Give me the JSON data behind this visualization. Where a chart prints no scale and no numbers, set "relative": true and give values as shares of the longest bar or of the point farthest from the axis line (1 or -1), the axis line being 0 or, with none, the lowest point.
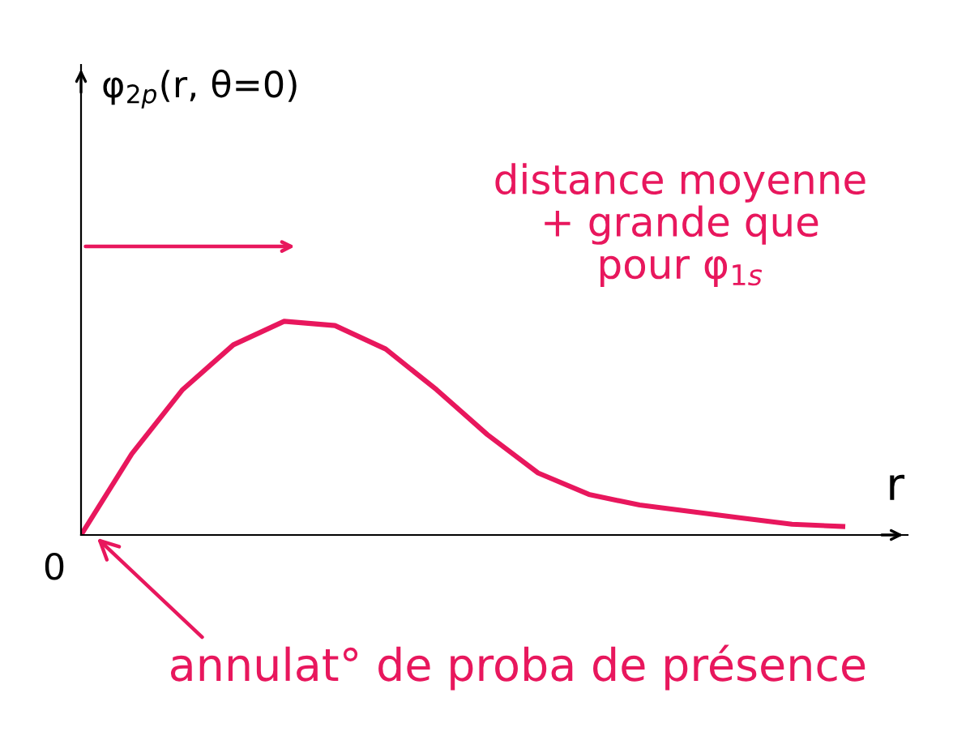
{
  "chart_data": {
    "type": "line",
    "relative": true,
    "xlabel": "r",
    "categories": [
      null,
      null,
      null,
      null,
      null,
      null,
      null,
      null,
      null,
      null,
      null,
      null,
      null,
      null,
      null,
      null
    ],
    "series": [
      {
        "color": "#e8175d",
        "values": [
          0,
          0.38,
          0.68,
          0.89,
          1.0,
          0.98,
          0.87,
          0.68,
          0.47,
          0.29,
          0.19,
          0.14,
          0.11,
          0.08,
          0.05,
          0.04
        ]
      }
    ],
    "annotations": [
      "φ$_{2p}$(r, θ=0)",
      "distance moyenne\n+ grande que\npour φ$_{1s}$",
      "0",
      "annulat° de proba de présence"
    ],
    "grid": false,
    "legend": false,
    "marker": "none",
    "line_style": "solid"
  }
}
